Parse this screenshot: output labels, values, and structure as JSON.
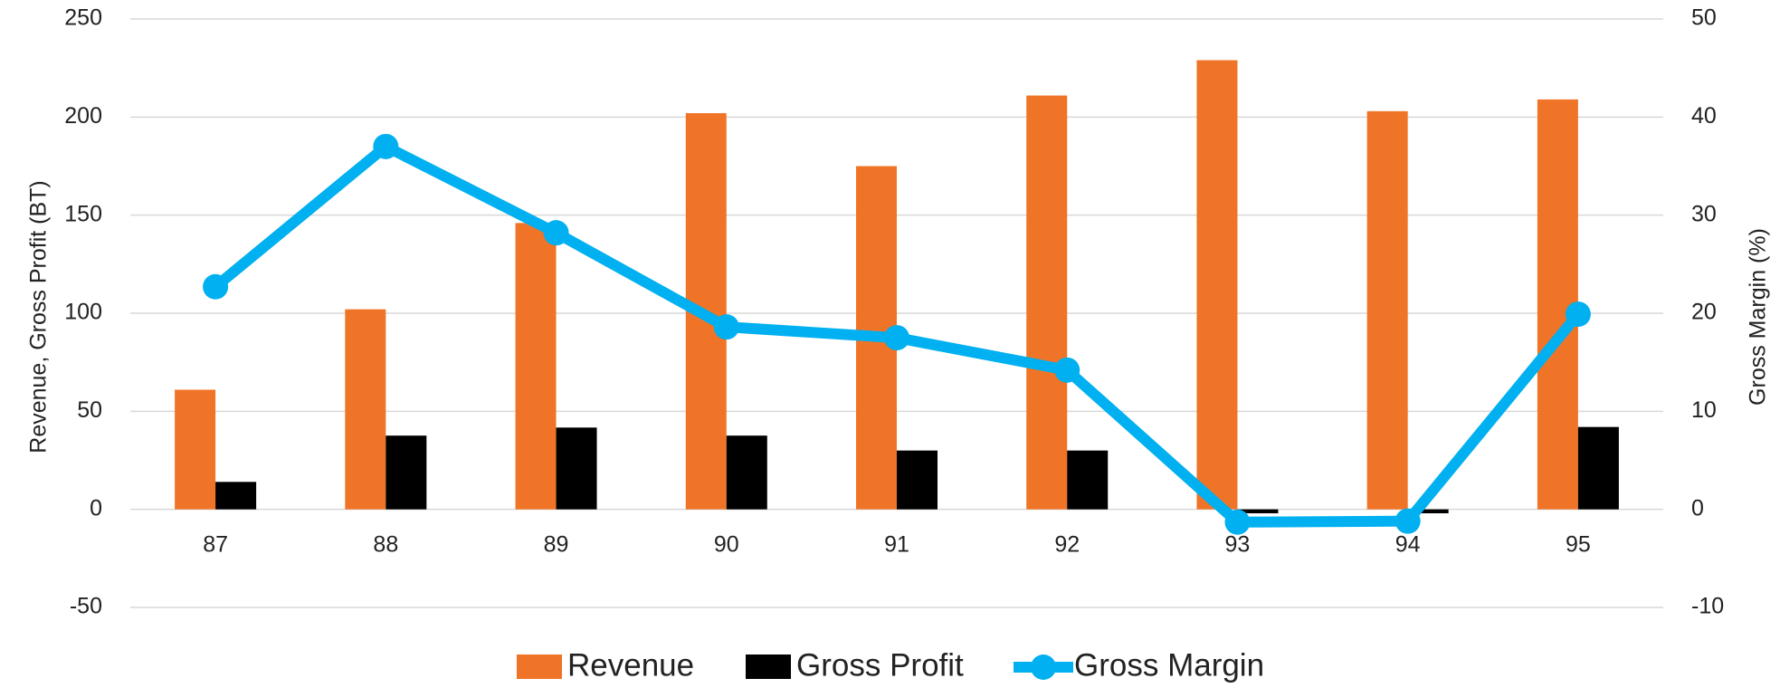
{
  "chart_data": {
    "type": "bar",
    "categories": [
      "87",
      "88",
      "89",
      "90",
      "91",
      "92",
      "93",
      "94",
      "95"
    ],
    "series": [
      {
        "name": "Revenue",
        "color": "#f07427",
        "type": "bar",
        "values": [
          61,
          102,
          146,
          202,
          175,
          211,
          229,
          203,
          209
        ]
      },
      {
        "name": "Gross Profit",
        "color": "#000000",
        "type": "bar",
        "values": [
          14,
          37.6,
          41.7,
          37.6,
          30,
          30,
          -2,
          -2,
          42
        ]
      },
      {
        "name": "Gross Margin",
        "color": "#00b0f0",
        "type": "line",
        "axis": "y2",
        "values": [
          22.7,
          37,
          28.2,
          18.6,
          17.5,
          14.2,
          -1.3,
          -1.2,
          19.9
        ]
      }
    ],
    "ylabel": "Revenue, Gross Profit (BT)",
    "y2label": "Gross Margin (%)",
    "ylim": [
      -50,
      250
    ],
    "yticks": [
      -50,
      0,
      50,
      100,
      150,
      200,
      250
    ],
    "y2lim": [
      -10,
      50
    ],
    "y2ticks": [
      -10,
      0,
      10,
      20,
      30,
      40,
      50
    ],
    "grid": true,
    "legend": "bottom"
  }
}
